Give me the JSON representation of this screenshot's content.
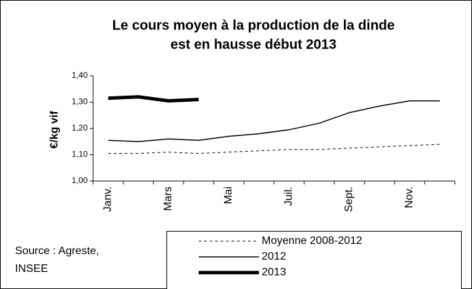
{
  "chart_data": {
    "type": "line",
    "title": [
      "Le cours moyen à la production de la dinde",
      "est en hausse début 2013"
    ],
    "ylabel": "€/kg vif",
    "source": [
      "Source : Agreste,",
      "INSEE"
    ],
    "categories": [
      "Janv.",
      null,
      "Mars",
      null,
      "Mai",
      null,
      "Juil.",
      null,
      "Sept.",
      null,
      "Nov.",
      null
    ],
    "ylim": [
      1.0,
      1.4
    ],
    "yticks": [
      {
        "value": 1.0,
        "label": "1,00"
      },
      {
        "value": 1.1,
        "label": "1,10"
      },
      {
        "value": 1.2,
        "label": "1,20"
      },
      {
        "value": 1.3,
        "label": "1,30"
      },
      {
        "value": 1.4,
        "label": "1,40"
      }
    ],
    "series": [
      {
        "name": "Moyenne 2008-2012",
        "color": "#000000",
        "dashed": true,
        "width": 1,
        "values": [
          1.105,
          1.105,
          1.11,
          1.105,
          1.11,
          1.115,
          1.12,
          1.12,
          1.125,
          1.13,
          1.135,
          1.14
        ]
      },
      {
        "name": "2012",
        "color": "#000000",
        "dashed": false,
        "width": 1.5,
        "values": [
          1.155,
          1.15,
          1.16,
          1.155,
          1.17,
          1.18,
          1.195,
          1.22,
          1.26,
          1.285,
          1.305,
          1.305
        ]
      },
      {
        "name": "2013",
        "color": "#000000",
        "dashed": false,
        "width": 5,
        "values": [
          1.315,
          1.32,
          1.305,
          1.31,
          null,
          null,
          null,
          null,
          null,
          null,
          null,
          null
        ]
      }
    ]
  }
}
